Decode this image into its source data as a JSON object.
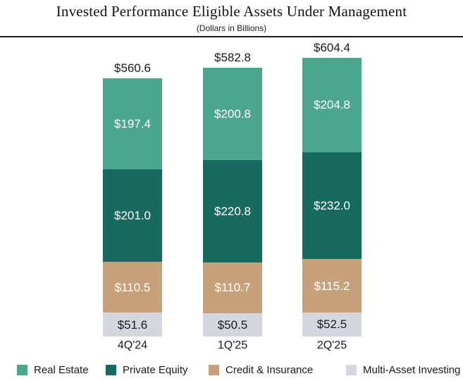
{
  "header": {
    "title": "Invested Performance Eligible Assets Under Management",
    "subtitle": "(Dollars in Billions)"
  },
  "chart_data": {
    "type": "stacked-bar",
    "title": "Invested Performance Eligible Assets Under Management",
    "subtitle": "(Dollars in Billions)",
    "unit": "Dollars in Billions",
    "categories": [
      "4Q'24",
      "1Q'25",
      "2Q'25"
    ],
    "totals": [
      560.6,
      582.8,
      604.4
    ],
    "total_labels": [
      "$560.6",
      "$582.8",
      "$604.4"
    ],
    "series": [
      {
        "name": "Real Estate",
        "values": [
          197.4,
          200.8,
          204.8
        ],
        "labels": [
          "$197.4",
          "$200.8",
          "$204.8"
        ],
        "color": "#4BA68C",
        "label_color": "#FFFFFF"
      },
      {
        "name": "Private Equity",
        "values": [
          201.0,
          220.8,
          232.0
        ],
        "labels": [
          "$201.0",
          "$220.8",
          "$232.0"
        ],
        "color": "#186A5F",
        "label_color": "#FFFFFF"
      },
      {
        "name": "Credit & Insurance",
        "values": [
          110.5,
          110.7,
          115.2
        ],
        "labels": [
          "$110.5",
          "$110.7",
          "$115.2"
        ],
        "color": "#C7A17B",
        "label_color": "#FFFFFF"
      },
      {
        "name": "Multi-Asset Investing",
        "values": [
          51.6,
          50.5,
          52.5
        ],
        "labels": [
          "$51.6",
          "$50.5",
          "$52.5"
        ],
        "color": "#D4D7DE",
        "label_color": "#1A1A1A"
      }
    ],
    "stack_order_bottom_to_top": [
      "Multi-Asset Investing",
      "Credit & Insurance",
      "Private Equity",
      "Real Estate"
    ],
    "legend_position": "bottom",
    "grid": false,
    "colors": {
      "text_dark": "#1A1A1A",
      "divider": "#1A1A1A",
      "background": "#FFFFFF"
    }
  }
}
